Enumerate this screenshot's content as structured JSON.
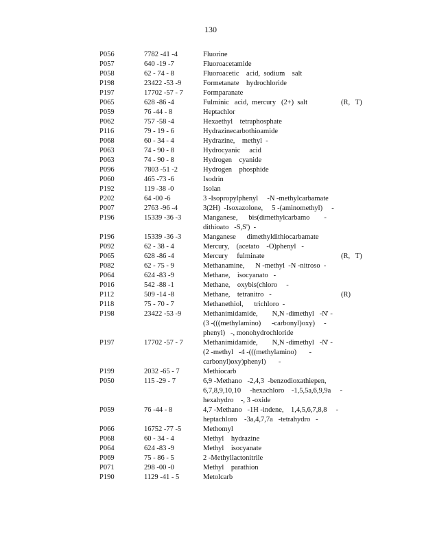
{
  "page_number": "130",
  "rows": [
    {
      "code": "P056",
      "cas": "7782 -41 -4",
      "name": [
        "Fluorine"
      ],
      "flag": ""
    },
    {
      "code": "P057",
      "cas": "640 -19 -7",
      "name": [
        "Fluoroacetamide"
      ],
      "flag": ""
    },
    {
      "code": "P058",
      "cas": "62 - 74 - 8",
      "name": [
        "Fluoroacetic    acid,  sodium    salt"
      ],
      "flag": ""
    },
    {
      "code": "P198",
      "cas": "23422  -53 -9",
      "name": [
        "Formetanate    hydrochloride"
      ],
      "flag": ""
    },
    {
      "code": "P197",
      "cas": "17702  -57 - 7",
      "name": [
        "Formparanate"
      ],
      "flag": ""
    },
    {
      "code": "P065",
      "cas": "628 -86 -4",
      "name": [
        "Fulminic   acid,  mercury   (2+)  salt"
      ],
      "flag": "(R,   T)"
    },
    {
      "code": "P059",
      "cas": "76 -44 - 8",
      "name": [
        "Heptachlor"
      ],
      "flag": ""
    },
    {
      "code": "P062",
      "cas": "757 -58 -4",
      "name": [
        "Hexaethyl    tetraphosphate"
      ],
      "flag": ""
    },
    {
      "code": "P116",
      "cas": "79 - 19 - 6",
      "name": [
        "Hydrazinecarbothioamide"
      ],
      "flag": ""
    },
    {
      "code": "P068",
      "cas": "60 - 34 - 4",
      "name": [
        "Hydrazine,    methyl  -"
      ],
      "flag": ""
    },
    {
      "code": "P063",
      "cas": "74 - 90 - 8",
      "name": [
        "Hydrocyanic     acid"
      ],
      "flag": ""
    },
    {
      "code": "P063",
      "cas": "74 - 90 - 8",
      "name": [
        "Hydrogen    cyanide"
      ],
      "flag": ""
    },
    {
      "code": "P096",
      "cas": "7803  -51 -2",
      "name": [
        "Hydrogen    phosphide"
      ],
      "flag": ""
    },
    {
      "code": "P060",
      "cas": "465 -73 -6",
      "name": [
        "Isodrin"
      ],
      "flag": ""
    },
    {
      "code": "P192",
      "cas": "119 -38 -0",
      "name": [
        "Isolan"
      ],
      "flag": ""
    },
    {
      "code": "P202",
      "cas": "64 -00 -6",
      "name": [
        "3 -Isopropylphenyl     -N -methylcarbamate"
      ],
      "flag": ""
    },
    {
      "code": "P007",
      "cas": "2763  -96 -4",
      "name": [
        "3(2H)  -Isoxazolone,     5 -(aminomethyl)     -"
      ],
      "flag": ""
    },
    {
      "code": "P196",
      "cas": "15339  -36 -3",
      "name": [
        "Manganese,      bis(dimethylcarbamo        -",
        "dithioato   -S,S')  -"
      ],
      "flag": ""
    },
    {
      "code": "P196",
      "cas": "15339  -36 -3",
      "name": [
        "Manganese      dimethyldithiocarbamate"
      ],
      "flag": ""
    },
    {
      "code": "P092",
      "cas": "62 - 38 - 4",
      "name": [
        "Mercury,    (acetato    -O)phenyl   -"
      ],
      "flag": ""
    },
    {
      "code": "P065",
      "cas": "628 -86 -4",
      "name": [
        "Mercury     fulminate"
      ],
      "flag": "(R,   T)"
    },
    {
      "code": "P082",
      "cas": "62 - 75 - 9",
      "name": [
        "Methanamine,      N -methyl  -N -nitroso  -"
      ],
      "flag": ""
    },
    {
      "code": "P064",
      "cas": "624 -83 -9",
      "name": [
        "Methane,    isocyanato   -"
      ],
      "flag": ""
    },
    {
      "code": "P016",
      "cas": "542 -88 -1",
      "name": [
        "Methane,    oxybis(chloro     -"
      ],
      "flag": ""
    },
    {
      "code": "P112",
      "cas": "509 -14 -8",
      "name": [
        "Methane,    tetranitro   -"
      ],
      "flag": "(R)"
    },
    {
      "code": "P118",
      "cas": "75 - 70 - 7",
      "name": [
        "Methanethiol,      trichloro  -"
      ],
      "flag": ""
    },
    {
      "code": "P198",
      "cas": "23422  -53 -9",
      "name": [
        "Methanimidamide,        N,N -dimethyl   -N' -",
        "(3 -(((methylamino)      -carbonyl)oxy)     -",
        "phenyl)   -, monohydrochloride"
      ],
      "flag": ""
    },
    {
      "code": "P197",
      "cas": "17702  -57 - 7",
      "name": [
        "Methanimidamide,        N,N -dimethyl   -N' -",
        "(2 -methyl   -4 -(((methylamino)       -",
        "carbonyl)oxy)phenyl)       -"
      ],
      "flag": ""
    },
    {
      "code": "P199",
      "cas": "2032  -65 - 7",
      "name": [
        "Methiocarb"
      ],
      "flag": ""
    },
    {
      "code": "P050",
      "cas": "115 -29 - 7",
      "name": [
        "6,9 -Methano   -2,4,3  -benzodioxathiepen,",
        "6,7,8,9,10,10     -hexachloro    -1,5,5a,6,9,9a     -",
        "hexahydro    -, 3 -oxide"
      ],
      "flag": ""
    },
    {
      "code": "P059",
      "cas": "76 -44 - 8",
      "name": [
        "4,7 -Methano   -1H -indene,    1,4,5,6,7,8,8     -",
        "heptachloro    -3a,4,7,7a   -tetrahydro   -"
      ],
      "flag": ""
    },
    {
      "code": "P066",
      "cas": "16752  -77 -5",
      "name": [
        "Methomyl"
      ],
      "flag": ""
    },
    {
      "code": "P068",
      "cas": "60 - 34 - 4",
      "name": [
        "Methyl    hydrazine"
      ],
      "flag": ""
    },
    {
      "code": "P064",
      "cas": "624 -83 -9",
      "name": [
        "Methyl    isocyanate"
      ],
      "flag": ""
    },
    {
      "code": "P069",
      "cas": "75 - 86 - 5",
      "name": [
        "2 -Methyllactonitrile"
      ],
      "flag": ""
    },
    {
      "code": "P071",
      "cas": "298 -00 -0",
      "name": [
        "Methyl    parathion"
      ],
      "flag": ""
    },
    {
      "code": "P190",
      "cas": "1129  -41 - 5",
      "name": [
        "Metolcarb"
      ],
      "flag": ""
    }
  ]
}
